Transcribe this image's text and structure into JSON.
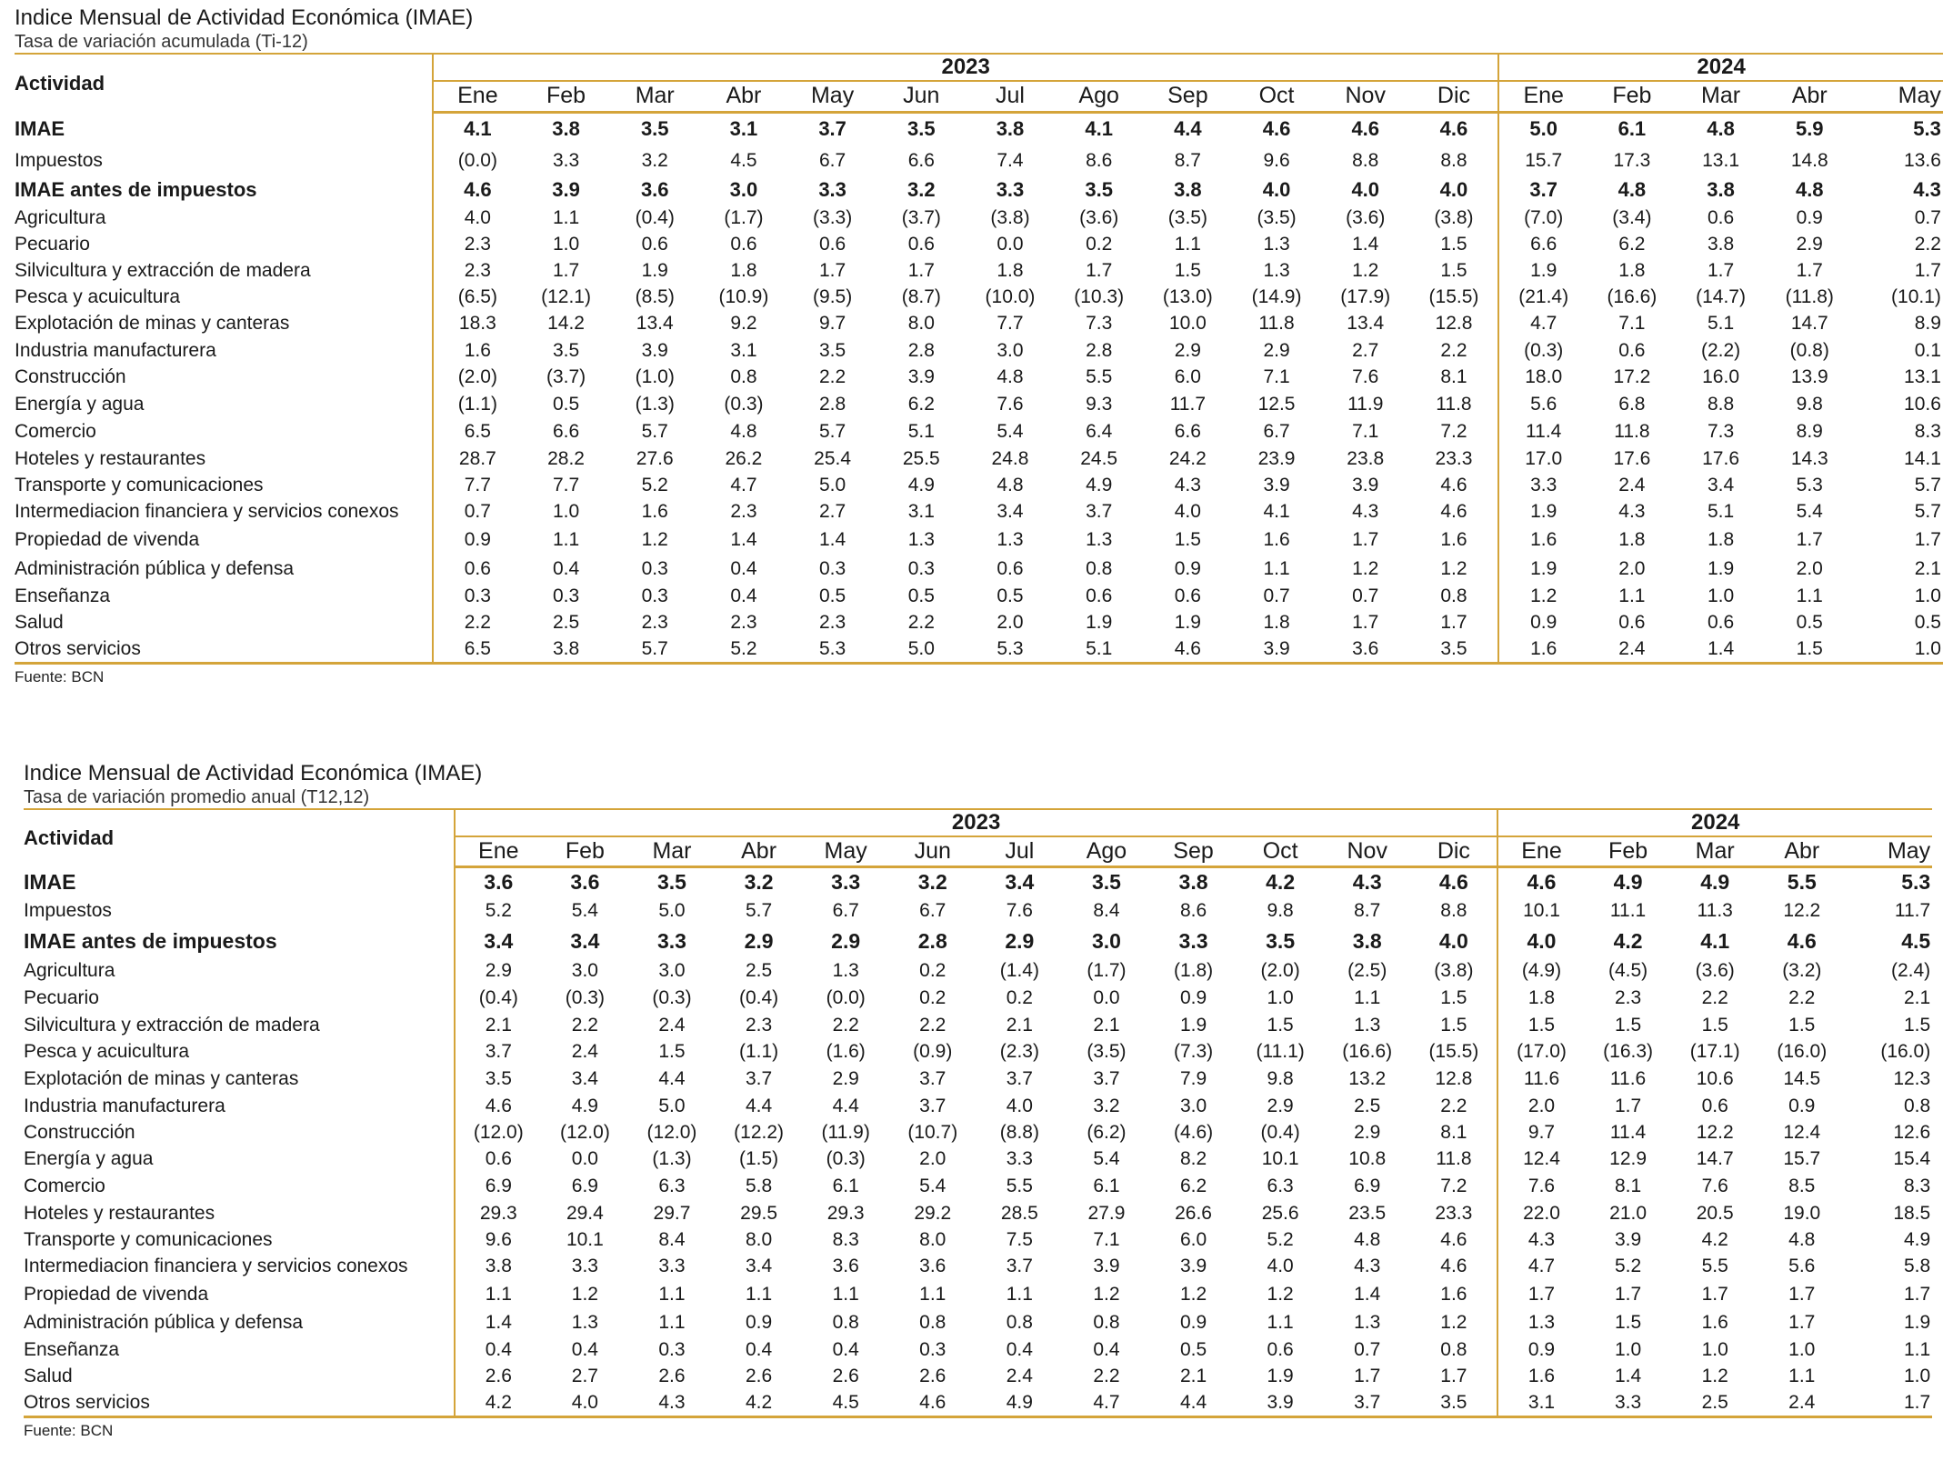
{
  "months": [
    "Ene",
    "Feb",
    "Mar",
    "Abr",
    "May",
    "Jun",
    "Jul",
    "Ago",
    "Sep",
    "Oct",
    "Nov",
    "Dic",
    "Ene",
    "Feb",
    "Mar",
    "Abr",
    "May"
  ],
  "years": [
    "2023",
    "2024"
  ],
  "activity_header": "Actividad",
  "tables": [
    {
      "title": "Indice Mensual de Actividad Económica (IMAE)",
      "subtitle": "Tasa de variación acumulada (Ti-12)",
      "source": "Fuente: BCN",
      "rows": [
        {
          "label": "IMAE",
          "bold": true,
          "values": [
            "4.1",
            "3.8",
            "3.5",
            "3.1",
            "3.7",
            "3.5",
            "3.8",
            "4.1",
            "4.4",
            "4.6",
            "4.6",
            "4.6",
            "5.0",
            "6.1",
            "4.8",
            "5.9",
            "5.3"
          ]
        },
        {
          "label": "Impuestos",
          "bold": false,
          "values": [
            "(0.0)",
            "3.3",
            "3.2",
            "4.5",
            "6.7",
            "6.6",
            "7.4",
            "8.6",
            "8.7",
            "9.6",
            "8.8",
            "8.8",
            "15.7",
            "17.3",
            "13.1",
            "14.8",
            "13.6"
          ]
        },
        {
          "label": "IMAE antes de impuestos",
          "bold": true,
          "values": [
            "4.6",
            "3.9",
            "3.6",
            "3.0",
            "3.3",
            "3.2",
            "3.3",
            "3.5",
            "3.8",
            "4.0",
            "4.0",
            "4.0",
            "3.7",
            "4.8",
            "3.8",
            "4.8",
            "4.3"
          ]
        },
        {
          "label": "Agricultura",
          "bold": false,
          "values": [
            "4.0",
            "1.1",
            "(0.4)",
            "(1.7)",
            "(3.3)",
            "(3.7)",
            "(3.8)",
            "(3.6)",
            "(3.5)",
            "(3.5)",
            "(3.6)",
            "(3.8)",
            "(7.0)",
            "(3.4)",
            "0.6",
            "0.9",
            "0.7"
          ]
        },
        {
          "label": "Pecuario",
          "bold": false,
          "values": [
            "2.3",
            "1.0",
            "0.6",
            "0.6",
            "0.6",
            "0.6",
            "0.0",
            "0.2",
            "1.1",
            "1.3",
            "1.4",
            "1.5",
            "6.6",
            "6.2",
            "3.8",
            "2.9",
            "2.2"
          ]
        },
        {
          "label": "Silvicultura y extracción de madera",
          "bold": false,
          "values": [
            "2.3",
            "1.7",
            "1.9",
            "1.8",
            "1.7",
            "1.7",
            "1.8",
            "1.7",
            "1.5",
            "1.3",
            "1.2",
            "1.5",
            "1.9",
            "1.8",
            "1.7",
            "1.7",
            "1.7"
          ]
        },
        {
          "label": "Pesca y acuicultura",
          "bold": false,
          "values": [
            "(6.5)",
            "(12.1)",
            "(8.5)",
            "(10.9)",
            "(9.5)",
            "(8.7)",
            "(10.0)",
            "(10.3)",
            "(13.0)",
            "(14.9)",
            "(17.9)",
            "(15.5)",
            "(21.4)",
            "(16.6)",
            "(14.7)",
            "(11.8)",
            "(10.1)"
          ]
        },
        {
          "label": "Explotación de minas y canteras",
          "bold": false,
          "values": [
            "18.3",
            "14.2",
            "13.4",
            "9.2",
            "9.7",
            "8.0",
            "7.7",
            "7.3",
            "10.0",
            "11.8",
            "13.4",
            "12.8",
            "4.7",
            "7.1",
            "5.1",
            "14.7",
            "8.9"
          ]
        },
        {
          "label": "Industria manufacturera",
          "bold": false,
          "values": [
            "1.6",
            "3.5",
            "3.9",
            "3.1",
            "3.5",
            "2.8",
            "3.0",
            "2.8",
            "2.9",
            "2.9",
            "2.7",
            "2.2",
            "(0.3)",
            "0.6",
            "(2.2)",
            "(0.8)",
            "0.1"
          ]
        },
        {
          "label": "Construcción",
          "bold": false,
          "values": [
            "(2.0)",
            "(3.7)",
            "(1.0)",
            "0.8",
            "2.2",
            "3.9",
            "4.8",
            "5.5",
            "6.0",
            "7.1",
            "7.6",
            "8.1",
            "18.0",
            "17.2",
            "16.0",
            "13.9",
            "13.1"
          ]
        },
        {
          "label": "Energía y agua",
          "bold": false,
          "values": [
            "(1.1)",
            "0.5",
            "(1.3)",
            "(0.3)",
            "2.8",
            "6.2",
            "7.6",
            "9.3",
            "11.7",
            "12.5",
            "11.9",
            "11.8",
            "5.6",
            "6.8",
            "8.8",
            "9.8",
            "10.6"
          ]
        },
        {
          "label": "Comercio",
          "bold": false,
          "values": [
            "6.5",
            "6.6",
            "5.7",
            "4.8",
            "5.7",
            "5.1",
            "5.4",
            "6.4",
            "6.6",
            "6.7",
            "7.1",
            "7.2",
            "11.4",
            "11.8",
            "7.3",
            "8.9",
            "8.3"
          ]
        },
        {
          "label": "Hoteles y restaurantes",
          "bold": false,
          "values": [
            "28.7",
            "28.2",
            "27.6",
            "26.2",
            "25.4",
            "25.5",
            "24.8",
            "24.5",
            "24.2",
            "23.9",
            "23.8",
            "23.3",
            "17.0",
            "17.6",
            "17.6",
            "14.3",
            "14.1"
          ]
        },
        {
          "label": "Transporte y comunicaciones",
          "bold": false,
          "values": [
            "7.7",
            "7.7",
            "5.2",
            "4.7",
            "5.0",
            "4.9",
            "4.8",
            "4.9",
            "4.3",
            "3.9",
            "3.9",
            "4.6",
            "3.3",
            "2.4",
            "3.4",
            "5.3",
            "5.7"
          ]
        },
        {
          "label": "Intermediacion financiera y servicios conexos",
          "bold": false,
          "values": [
            "0.7",
            "1.0",
            "1.6",
            "2.3",
            "2.7",
            "3.1",
            "3.4",
            "3.7",
            "4.0",
            "4.1",
            "4.3",
            "4.6",
            "1.9",
            "4.3",
            "5.1",
            "5.4",
            "5.7"
          ]
        },
        {
          "label": "Propiedad de vivenda",
          "bold": false,
          "values": [
            "0.9",
            "1.1",
            "1.2",
            "1.4",
            "1.4",
            "1.3",
            "1.3",
            "1.3",
            "1.5",
            "1.6",
            "1.7",
            "1.6",
            "1.6",
            "1.8",
            "1.8",
            "1.7",
            "1.7"
          ]
        },
        {
          "label": "Administración pública y defensa",
          "bold": false,
          "values": [
            "0.6",
            "0.4",
            "0.3",
            "0.4",
            "0.3",
            "0.3",
            "0.6",
            "0.8",
            "0.9",
            "1.1",
            "1.2",
            "1.2",
            "1.9",
            "2.0",
            "1.9",
            "2.0",
            "2.1"
          ]
        },
        {
          "label": "Enseñanza",
          "bold": false,
          "values": [
            "0.3",
            "0.3",
            "0.3",
            "0.4",
            "0.5",
            "0.5",
            "0.5",
            "0.6",
            "0.6",
            "0.7",
            "0.7",
            "0.8",
            "1.2",
            "1.1",
            "1.0",
            "1.1",
            "1.0"
          ]
        },
        {
          "label": "Salud",
          "bold": false,
          "values": [
            "2.2",
            "2.5",
            "2.3",
            "2.3",
            "2.3",
            "2.2",
            "2.0",
            "1.9",
            "1.9",
            "1.8",
            "1.7",
            "1.7",
            "0.9",
            "0.6",
            "0.6",
            "0.5",
            "0.5"
          ]
        },
        {
          "label": "Otros servicios",
          "bold": false,
          "values": [
            "6.5",
            "3.8",
            "5.7",
            "5.2",
            "5.3",
            "5.0",
            "5.3",
            "5.1",
            "4.6",
            "3.9",
            "3.6",
            "3.5",
            "1.6",
            "2.4",
            "1.4",
            "1.5",
            "1.0"
          ]
        }
      ]
    },
    {
      "title": "Indice Mensual de Actividad Económica (IMAE)",
      "subtitle": "Tasa de variación promedio anual (T12,12)",
      "source": "Fuente: BCN",
      "rows": [
        {
          "label": "IMAE",
          "bold": true,
          "values": [
            "3.6",
            "3.6",
            "3.5",
            "3.2",
            "3.3",
            "3.2",
            "3.4",
            "3.5",
            "3.8",
            "4.2",
            "4.3",
            "4.6",
            "4.6",
            "4.9",
            "4.9",
            "5.5",
            "5.3"
          ]
        },
        {
          "label": "Impuestos",
          "bold": false,
          "values": [
            "5.2",
            "5.4",
            "5.0",
            "5.7",
            "6.7",
            "6.7",
            "7.6",
            "8.4",
            "8.6",
            "9.8",
            "8.7",
            "8.8",
            "10.1",
            "11.1",
            "11.3",
            "12.2",
            "11.7"
          ]
        },
        {
          "label": "IMAE antes de impuestos",
          "bold": true,
          "values": [
            "3.4",
            "3.4",
            "3.3",
            "2.9",
            "2.9",
            "2.8",
            "2.9",
            "3.0",
            "3.3",
            "3.5",
            "3.8",
            "4.0",
            "4.0",
            "4.2",
            "4.1",
            "4.6",
            "4.5"
          ]
        },
        {
          "label": "Agricultura",
          "bold": false,
          "values": [
            "2.9",
            "3.0",
            "3.0",
            "2.5",
            "1.3",
            "0.2",
            "(1.4)",
            "(1.7)",
            "(1.8)",
            "(2.0)",
            "(2.5)",
            "(3.8)",
            "(4.9)",
            "(4.5)",
            "(3.6)",
            "(3.2)",
            "(2.4)"
          ]
        },
        {
          "label": "Pecuario",
          "bold": false,
          "values": [
            "(0.4)",
            "(0.3)",
            "(0.3)",
            "(0.4)",
            "(0.0)",
            "0.2",
            "0.2",
            "0.0",
            "0.9",
            "1.0",
            "1.1",
            "1.5",
            "1.8",
            "2.3",
            "2.2",
            "2.2",
            "2.1"
          ]
        },
        {
          "label": "Silvicultura y extracción de madera",
          "bold": false,
          "values": [
            "2.1",
            "2.2",
            "2.4",
            "2.3",
            "2.2",
            "2.2",
            "2.1",
            "2.1",
            "1.9",
            "1.5",
            "1.3",
            "1.5",
            "1.5",
            "1.5",
            "1.5",
            "1.5",
            "1.5"
          ]
        },
        {
          "label": "Pesca y acuicultura",
          "bold": false,
          "values": [
            "3.7",
            "2.4",
            "1.5",
            "(1.1)",
            "(1.6)",
            "(0.9)",
            "(2.3)",
            "(3.5)",
            "(7.3)",
            "(11.1)",
            "(16.6)",
            "(15.5)",
            "(17.0)",
            "(16.3)",
            "(17.1)",
            "(16.0)",
            "(16.0)"
          ]
        },
        {
          "label": "Explotación de minas y canteras",
          "bold": false,
          "values": [
            "3.5",
            "3.4",
            "4.4",
            "3.7",
            "2.9",
            "3.7",
            "3.7",
            "3.7",
            "7.9",
            "9.8",
            "13.2",
            "12.8",
            "11.6",
            "11.6",
            "10.6",
            "14.5",
            "12.3"
          ]
        },
        {
          "label": "Industria manufacturera",
          "bold": false,
          "values": [
            "4.6",
            "4.9",
            "5.0",
            "4.4",
            "4.4",
            "3.7",
            "4.0",
            "3.2",
            "3.0",
            "2.9",
            "2.5",
            "2.2",
            "2.0",
            "1.7",
            "0.6",
            "0.9",
            "0.8"
          ]
        },
        {
          "label": "Construcción",
          "bold": false,
          "values": [
            "(12.0)",
            "(12.0)",
            "(12.0)",
            "(12.2)",
            "(11.9)",
            "(10.7)",
            "(8.8)",
            "(6.2)",
            "(4.6)",
            "(0.4)",
            "2.9",
            "8.1",
            "9.7",
            "11.4",
            "12.2",
            "12.4",
            "12.6"
          ]
        },
        {
          "label": "Energía y agua",
          "bold": false,
          "values": [
            "0.6",
            "0.0",
            "(1.3)",
            "(1.5)",
            "(0.3)",
            "2.0",
            "3.3",
            "5.4",
            "8.2",
            "10.1",
            "10.8",
            "11.8",
            "12.4",
            "12.9",
            "14.7",
            "15.7",
            "15.4"
          ]
        },
        {
          "label": "Comercio",
          "bold": false,
          "values": [
            "6.9",
            "6.9",
            "6.3",
            "5.8",
            "6.1",
            "5.4",
            "5.5",
            "6.1",
            "6.2",
            "6.3",
            "6.9",
            "7.2",
            "7.6",
            "8.1",
            "7.6",
            "8.5",
            "8.3"
          ]
        },
        {
          "label": "Hoteles y restaurantes",
          "bold": false,
          "values": [
            "29.3",
            "29.4",
            "29.7",
            "29.5",
            "29.3",
            "29.2",
            "28.5",
            "27.9",
            "26.6",
            "25.6",
            "23.5",
            "23.3",
            "22.0",
            "21.0",
            "20.5",
            "19.0",
            "18.5"
          ]
        },
        {
          "label": "Transporte y comunicaciones",
          "bold": false,
          "values": [
            "9.6",
            "10.1",
            "8.4",
            "8.0",
            "8.3",
            "8.0",
            "7.5",
            "7.1",
            "6.0",
            "5.2",
            "4.8",
            "4.6",
            "4.3",
            "3.9",
            "4.2",
            "4.8",
            "4.9"
          ]
        },
        {
          "label": "Intermediacion financiera y servicios conexos",
          "bold": false,
          "values": [
            "3.8",
            "3.3",
            "3.3",
            "3.4",
            "3.6",
            "3.6",
            "3.7",
            "3.9",
            "3.9",
            "4.0",
            "4.3",
            "4.6",
            "4.7",
            "5.2",
            "5.5",
            "5.6",
            "5.8"
          ]
        },
        {
          "label": "Propiedad de vivenda",
          "bold": false,
          "values": [
            "1.1",
            "1.2",
            "1.1",
            "1.1",
            "1.1",
            "1.1",
            "1.1",
            "1.2",
            "1.2",
            "1.2",
            "1.4",
            "1.6",
            "1.7",
            "1.7",
            "1.7",
            "1.7",
            "1.7"
          ]
        },
        {
          "label": "Administración pública y defensa",
          "bold": false,
          "values": [
            "1.4",
            "1.3",
            "1.1",
            "0.9",
            "0.8",
            "0.8",
            "0.8",
            "0.8",
            "0.9",
            "1.1",
            "1.3",
            "1.2",
            "1.3",
            "1.5",
            "1.6",
            "1.7",
            "1.9"
          ]
        },
        {
          "label": "Enseñanza",
          "bold": false,
          "values": [
            "0.4",
            "0.4",
            "0.3",
            "0.4",
            "0.4",
            "0.3",
            "0.4",
            "0.4",
            "0.5",
            "0.6",
            "0.7",
            "0.8",
            "0.9",
            "1.0",
            "1.0",
            "1.0",
            "1.1"
          ]
        },
        {
          "label": "Salud",
          "bold": false,
          "values": [
            "2.6",
            "2.7",
            "2.6",
            "2.6",
            "2.6",
            "2.6",
            "2.4",
            "2.2",
            "2.1",
            "1.9",
            "1.7",
            "1.7",
            "1.6",
            "1.4",
            "1.2",
            "1.1",
            "1.0"
          ]
        },
        {
          "label": "Otros servicios",
          "bold": false,
          "values": [
            "4.2",
            "4.0",
            "4.3",
            "4.2",
            "4.5",
            "4.6",
            "4.9",
            "4.7",
            "4.4",
            "3.9",
            "3.7",
            "3.5",
            "3.1",
            "3.3",
            "2.5",
            "2.4",
            "1.7"
          ]
        }
      ]
    }
  ]
}
